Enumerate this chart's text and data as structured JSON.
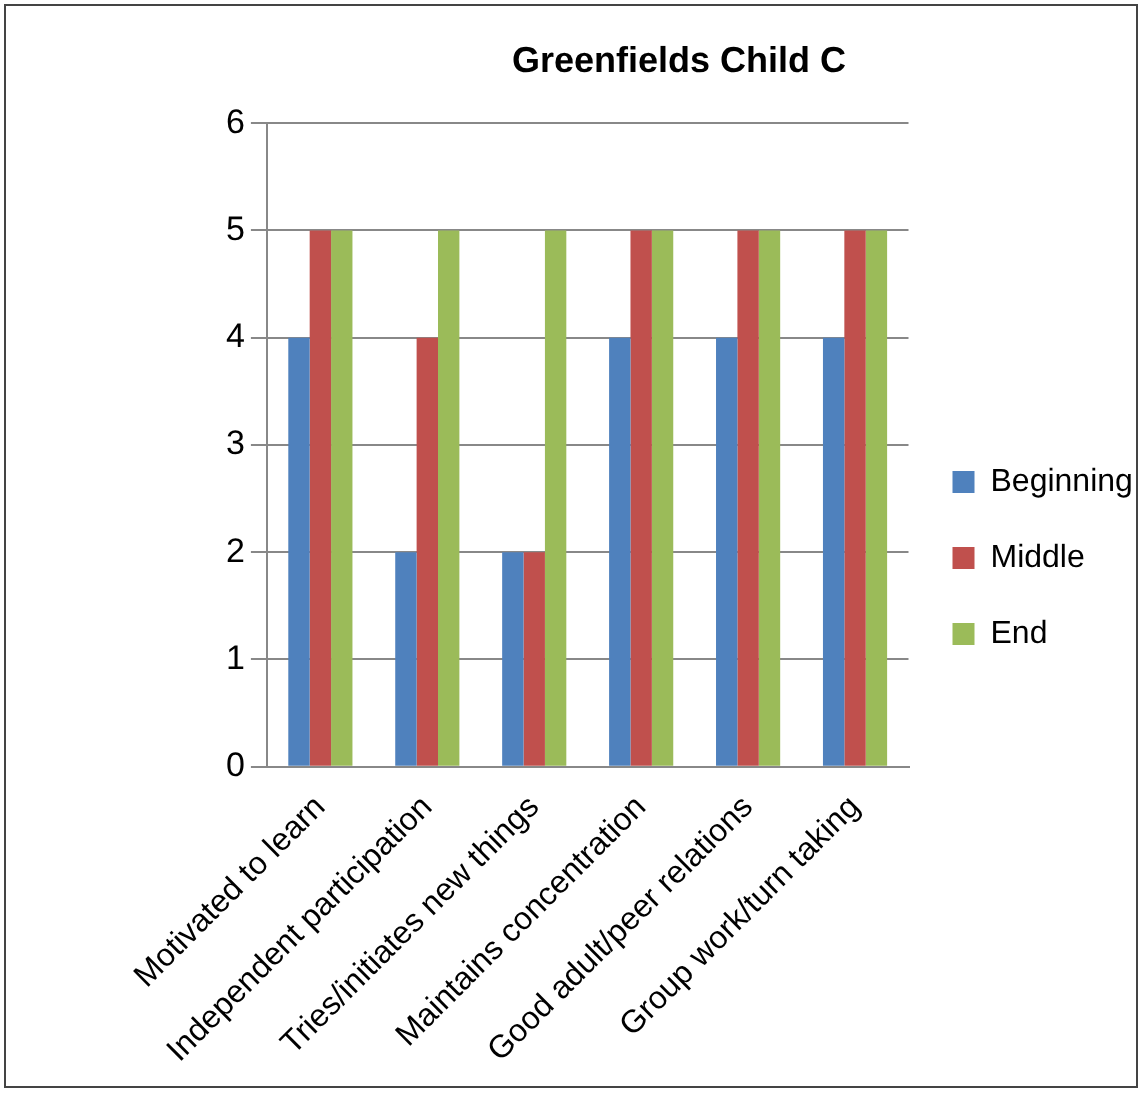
{
  "chart_data": {
    "type": "bar",
    "title": "Greenfields Child C",
    "categories": [
      "Motivated to learn",
      "Independent participation",
      "Tries/initiates new things",
      "Maintains concentration",
      "Good adult/peer relations",
      "Group work/turn taking"
    ],
    "series": [
      {
        "name": "Beginning",
        "color": "#4f81bd",
        "values": [
          4,
          2,
          2,
          4,
          4,
          4
        ]
      },
      {
        "name": "Middle",
        "color": "#c0504d",
        "values": [
          5,
          4,
          2,
          5,
          5,
          5
        ]
      },
      {
        "name": "End",
        "color": "#9bbb59",
        "values": [
          5,
          5,
          5,
          5,
          5,
          5
        ]
      }
    ],
    "ylim": [
      0,
      6
    ],
    "yticks": [
      0,
      1,
      2,
      3,
      4,
      5,
      6
    ],
    "grid": "y",
    "legend": "right"
  }
}
